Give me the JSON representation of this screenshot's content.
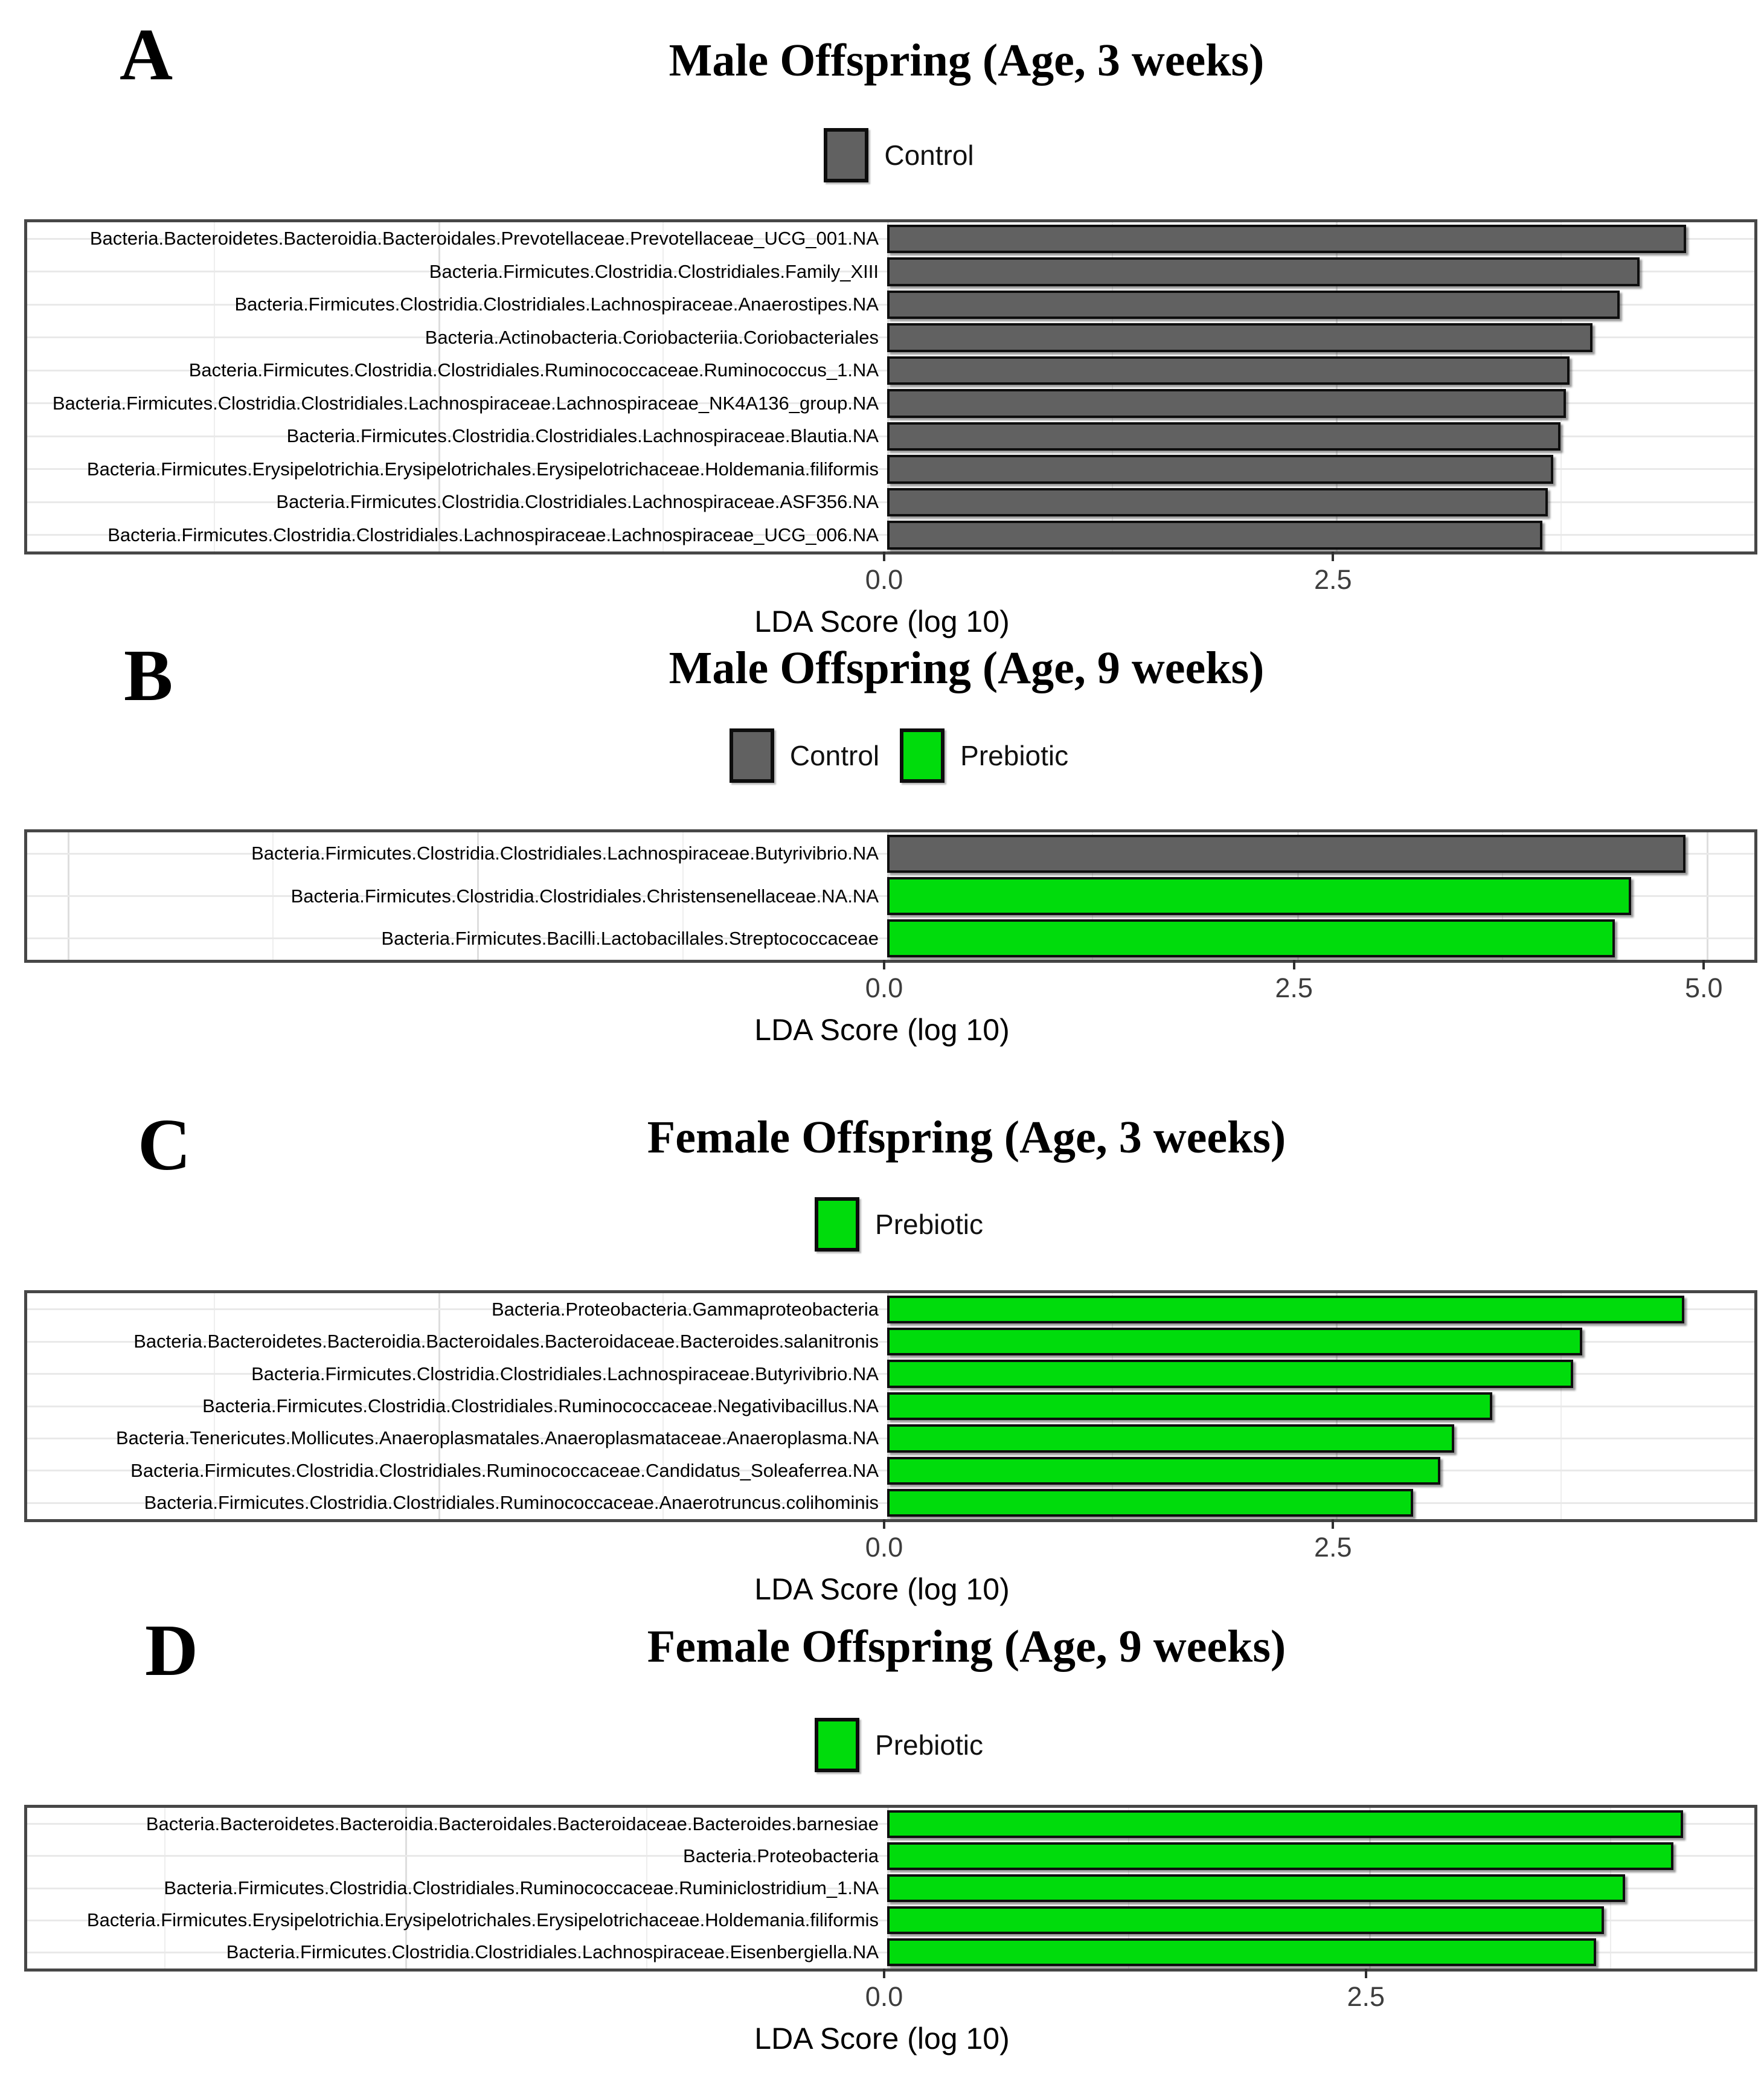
{
  "figure": {
    "axis_label": "LDA Score (log 10)",
    "tick_label_zero": "0.0",
    "colors": {
      "control_fill": "#616161",
      "prebiotic_fill": "#00dc0c",
      "bar_border": "#0e0e0e",
      "panel_border": "#474747",
      "gridline_major": "#dedede",
      "gridline_minor": "#eeeeee"
    },
    "panel_letters": [
      "A",
      "B",
      "C",
      "D"
    ]
  },
  "chart_data": [
    {
      "type": "bar",
      "orientation": "horizontal",
      "panel_letter": "A",
      "title": "Male Offspring (Age, 3 weeks)",
      "xlabel": "LDA Score (log 10)",
      "xlim": [
        0,
        4.83
      ],
      "xticks": [
        0,
        2.5
      ],
      "xtick_labels": [
        "0.0",
        "2.5"
      ],
      "legend": [
        {
          "label": "Control",
          "group": "control"
        }
      ],
      "categories": [
        "Bacteria.Bacteroidetes.Bacteroidia.Bacteroidales.Prevotellaceae.Prevotellaceae_UCG_001.NA",
        "Bacteria.Firmicutes.Clostridia.Clostridiales.Family_XIII",
        "Bacteria.Firmicutes.Clostridia.Clostridiales.Lachnospiraceae.Anaerostipes.NA",
        "Bacteria.Actinobacteria.Coriobacteriia.Coriobacteriales",
        "Bacteria.Firmicutes.Clostridia.Clostridiales.Ruminococcaceae.Ruminococcus_1.NA",
        "Bacteria.Firmicutes.Clostridia.Clostridiales.Lachnospiraceae.Lachnospiraceae_NK4A136_group.NA",
        "Bacteria.Firmicutes.Clostridia.Clostridiales.Lachnospiraceae.Blautia.NA",
        "Bacteria.Firmicutes.Erysipelotrichia.Erysipelotrichales.Erysipelotrichaceae.Holdemania.filiformis",
        "Bacteria.Firmicutes.Clostridia.Clostridiales.Lachnospiraceae.ASF356.NA",
        "Bacteria.Firmicutes.Clostridia.Clostridiales.Lachnospiraceae.Lachnospiraceae_UCG_006.NA"
      ],
      "values": [
        4.45,
        4.19,
        4.08,
        3.93,
        3.8,
        3.78,
        3.75,
        3.71,
        3.68,
        3.65
      ],
      "groups": [
        "control",
        "control",
        "control",
        "control",
        "control",
        "control",
        "control",
        "control",
        "control",
        "control"
      ]
    },
    {
      "type": "bar",
      "orientation": "horizontal",
      "panel_letter": "B",
      "title": "Male Offspring (Age, 9 weeks)",
      "xlabel": "LDA Score (log 10)",
      "xlim": [
        0,
        5.29
      ],
      "xticks": [
        0,
        2.5,
        5
      ],
      "xtick_labels": [
        "0.0",
        "2.5",
        "5.0"
      ],
      "legend": [
        {
          "label": "Control",
          "group": "control"
        },
        {
          "label": "Prebiotic",
          "group": "prebiotic"
        }
      ],
      "categories": [
        "Bacteria.Firmicutes.Clostridia.Clostridiales.Lachnospiraceae.Butyrivibrio.NA",
        "Bacteria.Firmicutes.Clostridia.Clostridiales.Christensenellaceae.NA.NA",
        "Bacteria.Firmicutes.Bacilli.Lactobacillales.Streptococcaceae"
      ],
      "values": [
        4.87,
        4.54,
        4.44
      ],
      "groups": [
        "control",
        "prebiotic",
        "prebiotic"
      ]
    },
    {
      "type": "bar",
      "orientation": "horizontal",
      "panel_letter": "C",
      "title": "Female Offspring (Age, 3 weeks)",
      "xlabel": "LDA Score (log 10)",
      "xlim": [
        0,
        4.83
      ],
      "xticks": [
        0,
        2.5
      ],
      "xtick_labels": [
        "0.0",
        "2.5"
      ],
      "legend": [
        {
          "label": "Prebiotic",
          "group": "prebiotic"
        }
      ],
      "categories": [
        "Bacteria.Proteobacteria.Gammaproteobacteria",
        "Bacteria.Bacteroidetes.Bacteroidia.Bacteroidales.Bacteroidaceae.Bacteroides.salanitronis",
        "Bacteria.Firmicutes.Clostridia.Clostridiales.Lachnospiraceae.Butyrivibrio.NA",
        "Bacteria.Firmicutes.Clostridia.Clostridiales.Ruminococcaceae.Negativibacillus.NA",
        "Bacteria.Tenericutes.Mollicutes.Anaeroplasmatales.Anaeroplasmataceae.Anaeroplasma.NA",
        "Bacteria.Firmicutes.Clostridia.Clostridiales.Ruminococcaceae.Candidatus_Soleaferrea.NA",
        "Bacteria.Firmicutes.Clostridia.Clostridiales.Ruminococcaceae.Anaerotruncus.colihominis"
      ],
      "values": [
        4.44,
        3.87,
        3.82,
        3.37,
        3.16,
        3.08,
        2.93
      ],
      "groups": [
        "prebiotic",
        "prebiotic",
        "prebiotic",
        "prebiotic",
        "prebiotic",
        "prebiotic",
        "prebiotic"
      ]
    },
    {
      "type": "bar",
      "orientation": "horizontal",
      "panel_letter": "D",
      "title": "Female Offspring (Age, 9 weeks)",
      "xlabel": "LDA Score (log 10)",
      "xlim": [
        0,
        4.5
      ],
      "xticks": [
        0,
        2.5
      ],
      "xtick_labels": [
        "0.0",
        "2.5"
      ],
      "legend": [
        {
          "label": "Prebiotic",
          "group": "prebiotic"
        }
      ],
      "categories": [
        "Bacteria.Bacteroidetes.Bacteroidia.Bacteroidales.Bacteroidaceae.Bacteroides.barnesiae",
        "Bacteria.Proteobacteria",
        "Bacteria.Firmicutes.Clostridia.Clostridiales.Ruminococcaceae.Ruminiclostridium_1.NA",
        "Bacteria.Firmicutes.Erysipelotrichia.Erysipelotrichales.Erysipelotrichaceae.Holdemania.filiformis",
        "Bacteria.Firmicutes.Clostridia.Clostridiales.Lachnospiraceae.Eisenbergiella.NA"
      ],
      "values": [
        4.13,
        4.08,
        3.83,
        3.72,
        3.68
      ],
      "groups": [
        "prebiotic",
        "prebiotic",
        "prebiotic",
        "prebiotic",
        "prebiotic"
      ]
    }
  ]
}
